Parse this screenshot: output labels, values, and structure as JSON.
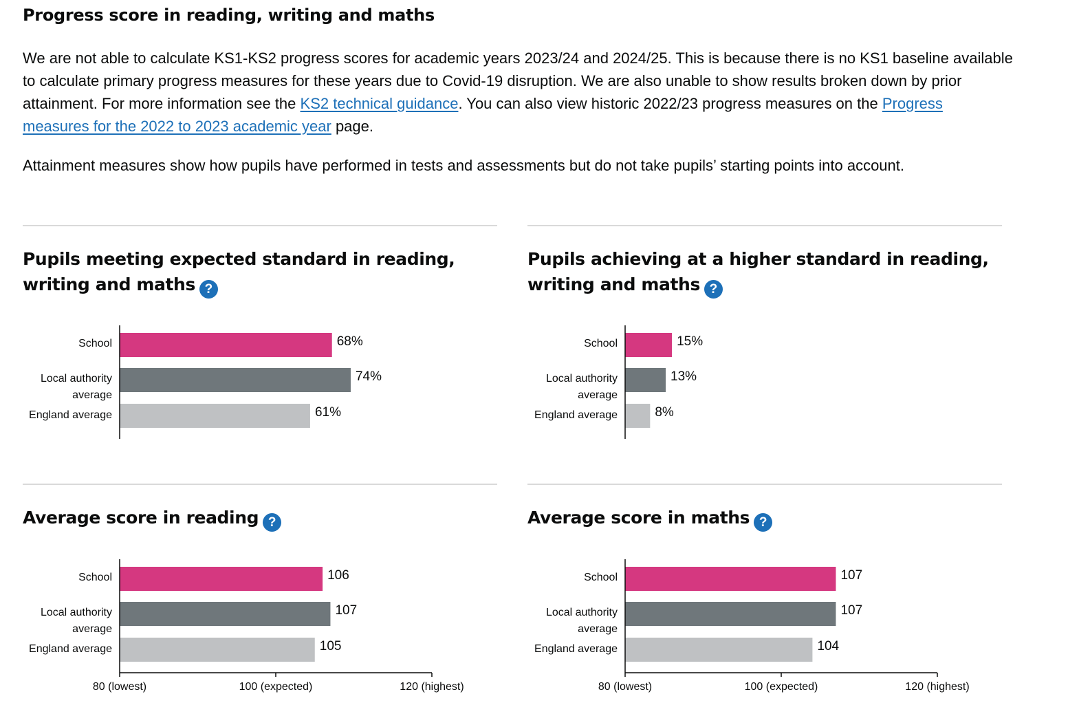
{
  "header": {
    "title": "Progress score in reading, writing and maths"
  },
  "intro": {
    "part1": "We are not able to calculate KS1-KS2 progress scores for academic years 2023/24 and 2024/25. This is because there is no KS1 baseline available to calculate primary progress measures for these years due to Covid-19 disruption. We are also unable to show results broken down by prior attainment. For more information see the ",
    "link1": "KS2 technical guidance",
    "part2": ". You can also view historic 2022/23 progress measures on the ",
    "link2": "Progress measures for the 2022 to 2023 academic year",
    "part3": " page.",
    "attainment_note": "Attainment measures show how pupils have performed in tests and assessments but do not take pupils’ starting points into account."
  },
  "help_icon": "?",
  "colors": {
    "school": "#d53880",
    "local_authority": "#6f777b",
    "england": "#bfc1c3",
    "link": "#1d70b8"
  },
  "chart_data": [
    {
      "id": "expected",
      "type": "bar",
      "orientation": "horizontal",
      "title": "Pupils meeting expected standard in reading, writing and maths",
      "categories": [
        "School",
        "Local authority average",
        "England average"
      ],
      "category_lines": [
        [
          "School"
        ],
        [
          "Local authority",
          "average"
        ],
        [
          "England average"
        ]
      ],
      "values": [
        68,
        74,
        61
      ],
      "value_labels": [
        "68%",
        "74%",
        "61%"
      ],
      "xlim": [
        0,
        100
      ],
      "ticks": []
    },
    {
      "id": "higher",
      "type": "bar",
      "orientation": "horizontal",
      "title": "Pupils achieving at a higher standard in reading, writing and maths",
      "categories": [
        "School",
        "Local authority average",
        "England average"
      ],
      "category_lines": [
        [
          "School"
        ],
        [
          "Local authority",
          "average"
        ],
        [
          "England average"
        ]
      ],
      "values": [
        15,
        13,
        8
      ],
      "value_labels": [
        "15%",
        "13%",
        "8%"
      ],
      "xlim": [
        0,
        100
      ],
      "ticks": []
    },
    {
      "id": "reading",
      "type": "bar",
      "orientation": "horizontal",
      "title": "Average score in reading",
      "categories": [
        "School",
        "Local authority average",
        "England average"
      ],
      "category_lines": [
        [
          "School"
        ],
        [
          "Local authority",
          "average"
        ],
        [
          "England average"
        ]
      ],
      "values": [
        106,
        107,
        105
      ],
      "value_labels": [
        "106",
        "107",
        "105"
      ],
      "xlim": [
        80,
        120
      ],
      "ticks": [
        {
          "value": 80,
          "label": "80 (lowest)"
        },
        {
          "value": 100,
          "label": "100 (expected)"
        },
        {
          "value": 120,
          "label": "120 (highest)"
        }
      ]
    },
    {
      "id": "maths",
      "type": "bar",
      "orientation": "horizontal",
      "title": "Average score in maths",
      "categories": [
        "School",
        "Local authority average",
        "England average"
      ],
      "category_lines": [
        [
          "School"
        ],
        [
          "Local authority",
          "average"
        ],
        [
          "England average"
        ]
      ],
      "values": [
        107,
        107,
        104
      ],
      "value_labels": [
        "107",
        "107",
        "104"
      ],
      "xlim": [
        80,
        120
      ],
      "ticks": [
        {
          "value": 80,
          "label": "80 (lowest)"
        },
        {
          "value": 100,
          "label": "100 (expected)"
        },
        {
          "value": 120,
          "label": "120 (highest)"
        }
      ]
    }
  ]
}
